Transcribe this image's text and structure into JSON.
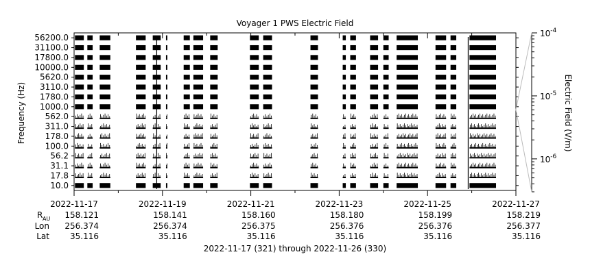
{
  "chart_data": {
    "type": "heatmap",
    "title": "Voyager 1 PWS Electric Field",
    "ylabel": "Frequency (Hz)",
    "colorbar_label": "Electric Field (V/m)",
    "colorbar_ticks": [
      {
        "base": "10",
        "exp": "-4",
        "value": 0.0001
      },
      {
        "base": "10",
        "exp": "-5",
        "value": 1e-05
      },
      {
        "base": "10",
        "exp": "-6",
        "value": 1e-06
      }
    ],
    "colorbar_range": [
      3e-07,
      0.0001
    ],
    "y_channels": [
      "10.0",
      "17.8",
      "31.1",
      "56.2",
      "100.0",
      "178.0",
      "311.0",
      "562.0",
      "1000.0",
      "1780.0",
      "3110.0",
      "5620.0",
      "10000.0",
      "17800.0",
      "31100.0",
      "56200.0"
    ],
    "x_range_days": [
      "2022-11-17",
      "2022-11-27"
    ],
    "x_ticks": [
      "2022-11-17",
      "2022-11-19",
      "2022-11-21",
      "2022-11-23",
      "2022-11-25",
      "2022-11-27"
    ],
    "ephemeris": {
      "labels": {
        "r_main": "R",
        "r_sub": "AU",
        "lon": "Lon",
        "lat": "Lat"
      },
      "r": [
        "158.121",
        "158.141",
        "158.160",
        "158.180",
        "158.199",
        "158.219"
      ],
      "lon": [
        "256.374",
        "256.374",
        "256.375",
        "256.376",
        "256.376",
        "256.377"
      ],
      "lat": [
        "35.116",
        "35.116",
        "35.116",
        "35.116",
        "35.116",
        "35.116"
      ]
    },
    "footer": "2022-11-17 (321) through 2022-11-26 (330)",
    "segments_days": [
      [
        0.02,
        0.22
      ],
      [
        0.3,
        0.42
      ],
      [
        0.58,
        0.82
      ],
      [
        1.4,
        1.62
      ],
      [
        1.78,
        1.96
      ],
      [
        2.08,
        2.11
      ],
      [
        2.48,
        2.62
      ],
      [
        2.7,
        2.92
      ],
      [
        3.08,
        3.25
      ],
      [
        3.98,
        4.18
      ],
      [
        4.28,
        4.48
      ],
      [
        5.35,
        5.52
      ],
      [
        6.08,
        6.15
      ],
      [
        6.25,
        6.38
      ],
      [
        6.7,
        6.88
      ],
      [
        7.0,
        7.12
      ],
      [
        7.3,
        7.78
      ],
      [
        8.18,
        8.42
      ],
      [
        8.52,
        8.65
      ],
      [
        8.95,
        9.55
      ]
    ],
    "spikes_days": [
      1.87,
      8.92
    ]
  }
}
